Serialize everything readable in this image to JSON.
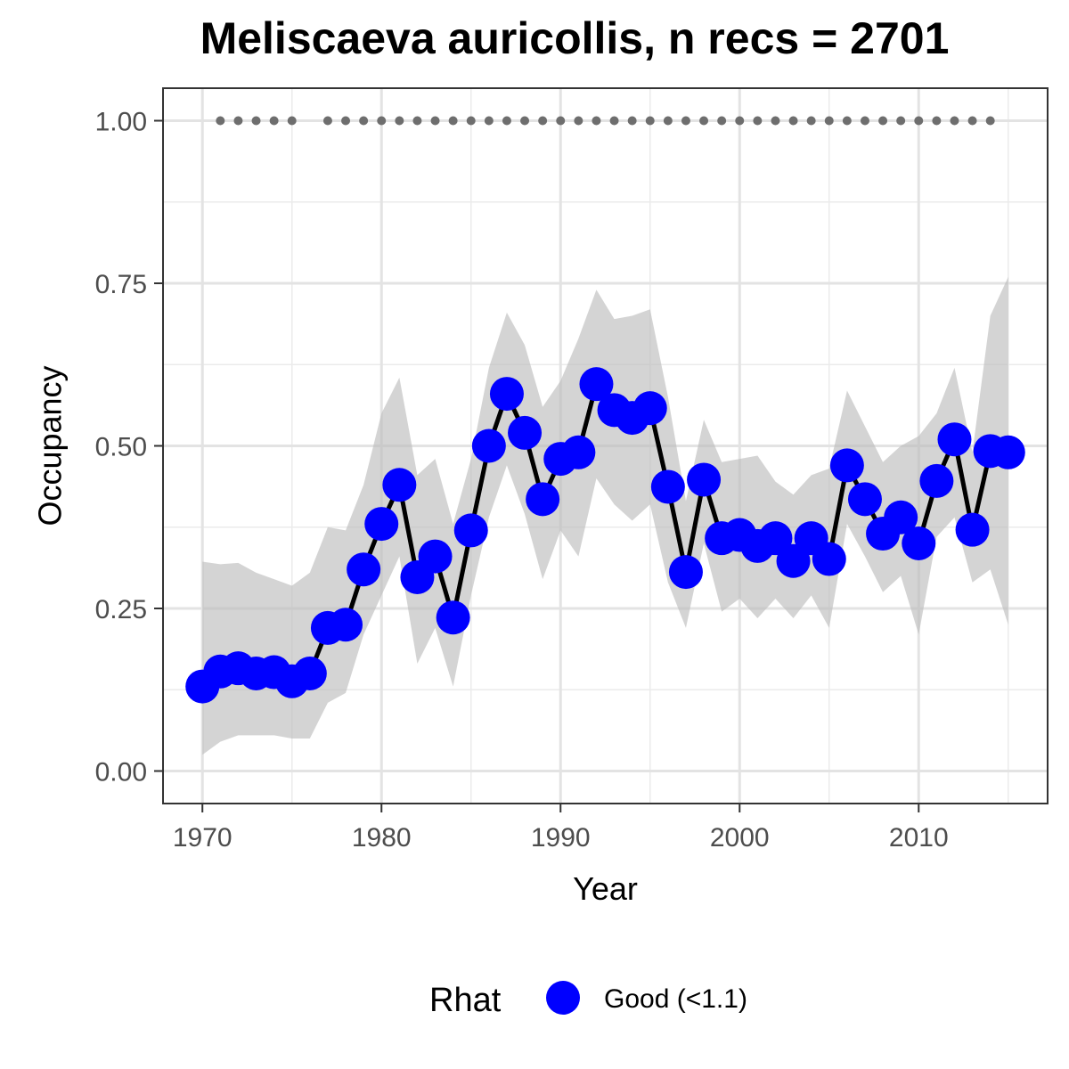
{
  "chart_data": {
    "type": "line",
    "title": "Meliscaeva auricollis, n recs = 2701",
    "xlabel": "Year",
    "ylabel": "Occupancy",
    "xlim": [
      1967.8,
      2017.2
    ],
    "ylim": [
      -0.05,
      1.05
    ],
    "x_ticks": [
      1970,
      1980,
      1990,
      2000,
      2010
    ],
    "x_tick_labels": [
      "1970",
      "1980",
      "1990",
      "2000",
      "2010"
    ],
    "y_ticks": [
      0,
      0.25,
      0.5,
      0.75,
      1
    ],
    "y_tick_labels": [
      "0.00",
      "0.25",
      "0.50",
      "0.75",
      "1.00"
    ],
    "grid": true,
    "legend": {
      "title": "Rhat",
      "placement": "bottom",
      "entries": [
        {
          "label": "Good (<1.1)",
          "color": "#0000ff"
        }
      ]
    },
    "colors": {
      "points": "#0000ff",
      "line": "#000000",
      "ribbon": "#bdbdbd",
      "record_dots": "#6e6e6e"
    },
    "series": [
      {
        "name": "Good (<1.1)",
        "x": [
          1970,
          1971,
          1972,
          1973,
          1974,
          1975,
          1976,
          1977,
          1978,
          1979,
          1980,
          1981,
          1982,
          1983,
          1984,
          1985,
          1986,
          1987,
          1988,
          1989,
          1990,
          1991,
          1992,
          1993,
          1994,
          1995,
          1996,
          1997,
          1998,
          1999,
          2000,
          2001,
          2002,
          2003,
          2004,
          2005,
          2006,
          2007,
          2008,
          2009,
          2010,
          2011,
          2012,
          2013,
          2014,
          2015
        ],
        "y": [
          0.13,
          0.153,
          0.158,
          0.15,
          0.152,
          0.138,
          0.15,
          0.22,
          0.225,
          0.31,
          0.38,
          0.44,
          0.298,
          0.33,
          0.236,
          0.37,
          0.5,
          0.58,
          0.52,
          0.418,
          0.48,
          0.49,
          0.595,
          0.555,
          0.543,
          0.558,
          0.437,
          0.306,
          0.448,
          0.358,
          0.363,
          0.346,
          0.358,
          0.323,
          0.358,
          0.326,
          0.47,
          0.418,
          0.365,
          0.39,
          0.35,
          0.446,
          0.51,
          0.371,
          0.492,
          0.49
        ],
        "lower": [
          0.025,
          0.045,
          0.055,
          0.055,
          0.055,
          0.05,
          0.05,
          0.105,
          0.12,
          0.21,
          0.27,
          0.33,
          0.165,
          0.22,
          0.13,
          0.27,
          0.39,
          0.47,
          0.395,
          0.295,
          0.37,
          0.33,
          0.45,
          0.41,
          0.385,
          0.41,
          0.29,
          0.22,
          0.35,
          0.245,
          0.265,
          0.235,
          0.265,
          0.235,
          0.27,
          0.22,
          0.38,
          0.33,
          0.275,
          0.3,
          0.21,
          0.36,
          0.39,
          0.29,
          0.31,
          0.225
        ],
        "upper": [
          0.322,
          0.318,
          0.32,
          0.305,
          0.295,
          0.285,
          0.305,
          0.375,
          0.37,
          0.44,
          0.55,
          0.605,
          0.455,
          0.48,
          0.38,
          0.48,
          0.62,
          0.705,
          0.655,
          0.56,
          0.6,
          0.665,
          0.74,
          0.695,
          0.7,
          0.71,
          0.575,
          0.415,
          0.54,
          0.475,
          0.48,
          0.485,
          0.445,
          0.425,
          0.455,
          0.465,
          0.585,
          0.53,
          0.475,
          0.5,
          0.515,
          0.55,
          0.62,
          0.49,
          0.7,
          0.76
        ]
      }
    ],
    "record_years": [
      1971,
      1972,
      1973,
      1974,
      1975,
      1977,
      1978,
      1979,
      1980,
      1981,
      1982,
      1983,
      1984,
      1985,
      1986,
      1987,
      1988,
      1989,
      1990,
      1991,
      1992,
      1993,
      1994,
      1995,
      1996,
      1997,
      1998,
      1999,
      2000,
      2001,
      2002,
      2003,
      2004,
      2005,
      2006,
      2007,
      2008,
      2009,
      2010,
      2011,
      2012,
      2013,
      2014
    ]
  }
}
